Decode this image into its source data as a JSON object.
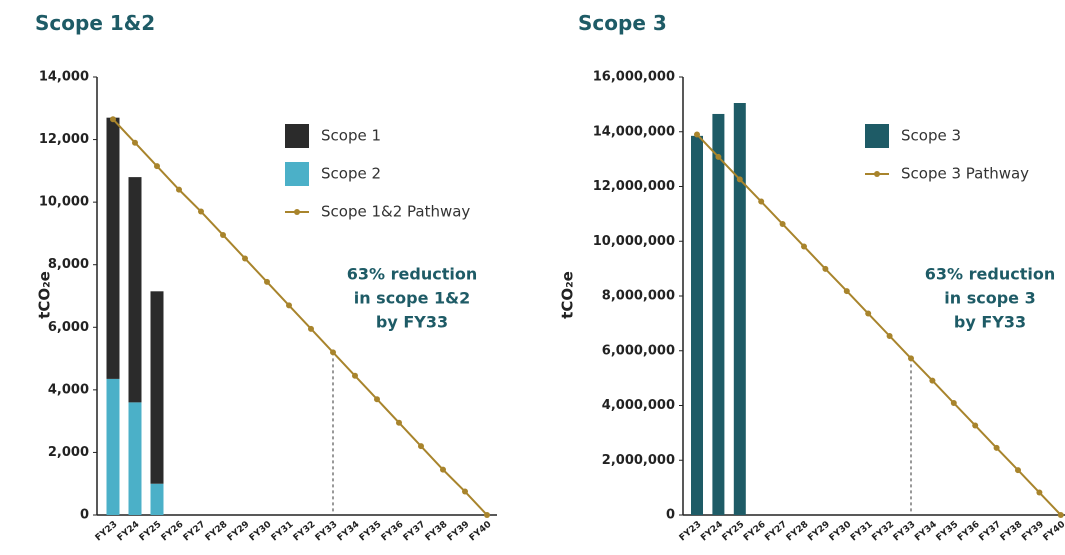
{
  "chart_data": [
    {
      "type": "bar",
      "title": "Scope 1&2",
      "y_label": "tCO₂e",
      "categories": [
        "FY23",
        "FY24",
        "FY25",
        "FY26",
        "FY27",
        "FY28",
        "FY29",
        "FY30",
        "FY31",
        "FY32",
        "FY33",
        "FY34",
        "FY35",
        "FY36",
        "FY37",
        "FY38",
        "FY39",
        "FY40"
      ],
      "series": [
        {
          "name": "Scope 1",
          "type": "bar",
          "color": "#2b2b2b",
          "values": [
            8350,
            7200,
            6150,
            null,
            null,
            null,
            null,
            null,
            null,
            null,
            null,
            null,
            null,
            null,
            null,
            null,
            null,
            null
          ]
        },
        {
          "name": "Scope 2",
          "type": "bar",
          "color": "#4bb0c8",
          "values": [
            4350,
            3600,
            1000,
            null,
            null,
            null,
            null,
            null,
            null,
            null,
            null,
            null,
            null,
            null,
            null,
            null,
            null,
            null
          ]
        },
        {
          "name": "Scope 1&2 Pathway",
          "type": "line",
          "color": "#a8842c",
          "values": [
            12650,
            11900,
            11150,
            10400,
            9700,
            8950,
            8200,
            7450,
            6700,
            5950,
            5200,
            4450,
            3700,
            2950,
            2200,
            1450,
            750,
            0
          ]
        }
      ],
      "stacked": true,
      "ylim": [
        0,
        14000
      ],
      "yticks": [
        0,
        {
          "value": 2000,
          "label": "2,000"
        },
        {
          "value": 4000,
          "label": "4,000"
        },
        {
          "value": 6000,
          "label": "6,000"
        },
        {
          "value": 8000,
          "label": "8,000"
        },
        {
          "value": 10000,
          "label": "10,000"
        },
        {
          "value": 12000,
          "label": "12,000"
        },
        {
          "value": 14000,
          "label": "14,000"
        }
      ],
      "annotation": [
        "63% reduction",
        "in scope 1&2",
        "by FY33"
      ]
    },
    {
      "type": "bar",
      "title": "Scope 3",
      "y_label": "tCO₂e",
      "categories": [
        "FY23",
        "FY24",
        "FY25",
        "FY26",
        "FY27",
        "FY28",
        "FY29",
        "FY30",
        "FY31",
        "FY32",
        "FY33",
        "FY34",
        "FY35",
        "FY36",
        "FY37",
        "FY38",
        "FY39",
        "FY40"
      ],
      "series": [
        {
          "name": "Scope 3",
          "type": "bar",
          "color": "#1e5b66",
          "values": [
            13850000,
            14650000,
            15050000,
            null,
            null,
            null,
            null,
            null,
            null,
            null,
            null,
            null,
            null,
            null,
            null,
            null,
            null,
            null
          ]
        },
        {
          "name": "Scope 3 Pathway",
          "type": "line",
          "color": "#a8842c",
          "values": [
            13900000,
            13080000,
            12260000,
            11450000,
            10630000,
            9810000,
            8990000,
            8180000,
            7360000,
            6540000,
            5720000,
            4910000,
            4090000,
            3270000,
            2450000,
            1640000,
            820000,
            0
          ]
        }
      ],
      "stacked": true,
      "ylim": [
        0,
        16000000
      ],
      "yticks": [
        0,
        {
          "value": 2000000,
          "label": "2,000,000"
        },
        {
          "value": 4000000,
          "label": "4,000,000"
        },
        {
          "value": 6000000,
          "label": "6,000,000"
        },
        {
          "value": 8000000,
          "label": "8,000,000"
        },
        {
          "value": 10000000,
          "label": "10,000,000"
        },
        {
          "value": 12000000,
          "label": "12,000,000"
        },
        {
          "value": 14000000,
          "label": "14,000,000"
        },
        {
          "value": 16000000,
          "label": "16,000,000"
        }
      ],
      "annotation": [
        "63% reduction",
        "in scope 3",
        "by FY33"
      ]
    }
  ]
}
